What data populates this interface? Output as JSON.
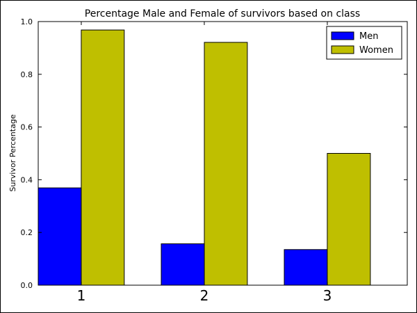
{
  "chart_data": {
    "type": "bar",
    "title": "Percentage Male and Female of survivors based on class",
    "xlabel": "",
    "ylabel": "Survivor Percentage",
    "categories": [
      "1",
      "2",
      "3"
    ],
    "series": [
      {
        "name": "Men",
        "color": "#0000ff",
        "values": [
          0.369,
          0.157,
          0.135
        ]
      },
      {
        "name": "Women",
        "color": "#bfbf00",
        "values": [
          0.968,
          0.921,
          0.5
        ]
      }
    ],
    "ylim": [
      0,
      1.0
    ],
    "yticks": [
      "0.0",
      "0.2",
      "0.4",
      "0.6",
      "0.8",
      "1.0"
    ],
    "ytick_values": [
      0,
      0.2,
      0.4,
      0.6,
      0.8,
      1.0
    ],
    "grid": false,
    "legend_position": "top-right"
  }
}
